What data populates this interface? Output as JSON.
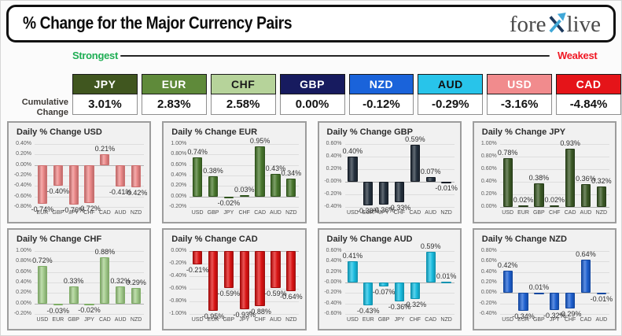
{
  "header": {
    "title": "% Change for the Major Currency Pairs",
    "logo_part1": "fore",
    "logo_part2": "live"
  },
  "scale": {
    "strongest_label": "Strongest",
    "weakest_label": "Weakest",
    "strongest_color": "#1fae54",
    "weakest_color": "#f01823"
  },
  "cumulative": {
    "label_line1": "Cumulative",
    "label_line2": "Change",
    "items": [
      {
        "code": "JPY",
        "value": "3.01%",
        "bg": "#40561f",
        "fg": "#ffffff"
      },
      {
        "code": "EUR",
        "value": "2.83%",
        "bg": "#5f8a3a",
        "fg": "#ffffff"
      },
      {
        "code": "CHF",
        "value": "2.58%",
        "bg": "#b6d39a",
        "fg": "#1a1a1a"
      },
      {
        "code": "GBP",
        "value": "0.00%",
        "bg": "#171b5f",
        "fg": "#ffffff"
      },
      {
        "code": "NZD",
        "value": "-0.12%",
        "bg": "#1a63da",
        "fg": "#ffffff"
      },
      {
        "code": "AUD",
        "value": "-0.29%",
        "bg": "#28c4ea",
        "fg": "#101010"
      },
      {
        "code": "USD",
        "value": "-3.16%",
        "bg": "#f18b8d",
        "fg": "#ffffff"
      },
      {
        "code": "CAD",
        "value": "-4.84%",
        "bg": "#e51419",
        "fg": "#ffffff"
      }
    ]
  },
  "chart_data": [
    {
      "type": "bar",
      "title": "Daily % Change USD",
      "categories": [
        "EUR",
        "GBP",
        "JPY",
        "CHF",
        "CAD",
        "AUD",
        "NZD"
      ],
      "values": [
        -0.74,
        -0.4,
        -0.76,
        -0.72,
        0.21,
        -0.41,
        -0.42
      ],
      "ylim": [
        -0.8,
        0.4
      ],
      "ytick_step": 0.2,
      "bar_color": "#f28a8a",
      "bar_edge": "#cf6f6f"
    },
    {
      "type": "bar",
      "title": "Daily % Change EUR",
      "categories": [
        "USD",
        "GBP",
        "JPY",
        "CHF",
        "CAD",
        "AUD",
        "NZD"
      ],
      "values": [
        0.74,
        0.38,
        -0.02,
        0.03,
        0.95,
        0.43,
        0.34
      ],
      "ylim": [
        -0.2,
        1.0
      ],
      "ytick_step": 0.2,
      "bar_color": "#4b7b2e",
      "bar_edge": "#2f531c"
    },
    {
      "type": "bar",
      "title": "Daily % Change GBP",
      "categories": [
        "USD",
        "EUR",
        "JPY",
        "CHF",
        "CAD",
        "AUD",
        "NZD"
      ],
      "values": [
        0.4,
        -0.38,
        -0.36,
        -0.33,
        0.59,
        0.07,
        -0.01
      ],
      "ylim": [
        -0.4,
        0.6
      ],
      "ytick_step": 0.2,
      "bar_color": "#25313f",
      "bar_edge": "#131a23"
    },
    {
      "type": "bar",
      "title": "Daily % Change JPY",
      "categories": [
        "USD",
        "EUR",
        "GBP",
        "CHF",
        "CAD",
        "AUD",
        "NZD"
      ],
      "values": [
        0.78,
        0.02,
        0.38,
        0.02,
        0.93,
        0.36,
        0.32
      ],
      "ylim": [
        0.0,
        1.0
      ],
      "ytick_step": 0.2,
      "bar_color": "#3d5c27",
      "bar_edge": "#263d18"
    },
    {
      "type": "bar",
      "title": "Daily % Change CHF",
      "categories": [
        "USD",
        "EUR",
        "GBP",
        "JPY",
        "CAD",
        "AUD",
        "NZD"
      ],
      "values": [
        0.72,
        -0.03,
        0.33,
        -0.02,
        0.88,
        0.32,
        0.29
      ],
      "ylim": [
        -0.2,
        1.0
      ],
      "ytick_step": 0.2,
      "bar_color": "#a6d18d",
      "bar_edge": "#7fae66"
    },
    {
      "type": "bar",
      "title": "Daily % Change CAD",
      "categories": [
        "USD",
        "EUR",
        "GBP",
        "JPY",
        "CHF",
        "AUD",
        "NZD"
      ],
      "values": [
        -0.21,
        -0.95,
        -0.59,
        -0.93,
        -0.88,
        -0.59,
        -0.64
      ],
      "ylim": [
        -1.0,
        0.0
      ],
      "ytick_step": 0.2,
      "bar_color": "#e31313",
      "bar_edge": "#9e0d0d"
    },
    {
      "type": "bar",
      "title": "Daily % Change AUD",
      "categories": [
        "USD",
        "EUR",
        "GBP",
        "JPY",
        "CHF",
        "CAD",
        "NZD"
      ],
      "values": [
        0.41,
        -0.43,
        -0.07,
        -0.36,
        -0.32,
        0.59,
        0.01
      ],
      "ylim": [
        -0.6,
        0.6
      ],
      "ytick_step": 0.2,
      "bar_color": "#19c3e8",
      "bar_edge": "#0f93b0"
    },
    {
      "type": "bar",
      "title": "Daily % Change NZD",
      "categories": [
        "USD",
        "EUR",
        "GBP",
        "JPY",
        "CHF",
        "CAD",
        "AUD"
      ],
      "values": [
        0.42,
        -0.34,
        0.01,
        -0.32,
        -0.29,
        0.64,
        -0.01
      ],
      "ylim": [
        -0.4,
        0.8
      ],
      "ytick_step": 0.2,
      "bar_color": "#1e63d8",
      "bar_edge": "#1347a0"
    }
  ]
}
